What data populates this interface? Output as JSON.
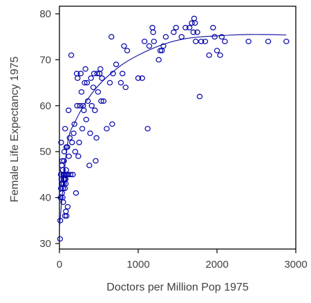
{
  "chart_data": {
    "type": "scatter",
    "title": "",
    "xlabel": "Doctors per Million Pop 1975",
    "ylabel": "Female Life Expectancy 1975",
    "xlim": [
      0,
      3000
    ],
    "ylim": [
      30,
      80
    ],
    "xticks": [
      "0",
      "1000",
      "2000",
      "3000"
    ],
    "yticks": [
      "30",
      "40",
      "50",
      "60",
      "70",
      "80"
    ],
    "grid": false,
    "legend": "none",
    "colors": {
      "points": "#0000aa",
      "fit_line": "#1a1aa6",
      "axes": "#000000"
    },
    "points": [
      {
        "x": 8,
        "y": 31
      },
      {
        "x": 10,
        "y": 35
      },
      {
        "x": 15,
        "y": 40
      },
      {
        "x": 18,
        "y": 45
      },
      {
        "x": 20,
        "y": 42
      },
      {
        "x": 22,
        "y": 52
      },
      {
        "x": 25,
        "y": 44
      },
      {
        "x": 28,
        "y": 43
      },
      {
        "x": 30,
        "y": 47
      },
      {
        "x": 32,
        "y": 41
      },
      {
        "x": 35,
        "y": 48
      },
      {
        "x": 38,
        "y": 43
      },
      {
        "x": 40,
        "y": 40
      },
      {
        "x": 42,
        "y": 46
      },
      {
        "x": 45,
        "y": 42
      },
      {
        "x": 48,
        "y": 39
      },
      {
        "x": 50,
        "y": 45
      },
      {
        "x": 52,
        "y": 44
      },
      {
        "x": 55,
        "y": 43
      },
      {
        "x": 58,
        "y": 48
      },
      {
        "x": 60,
        "y": 45
      },
      {
        "x": 62,
        "y": 50
      },
      {
        "x": 65,
        "y": 44
      },
      {
        "x": 68,
        "y": 42
      },
      {
        "x": 70,
        "y": 36
      },
      {
        "x": 72,
        "y": 55
      },
      {
        "x": 75,
        "y": 45
      },
      {
        "x": 78,
        "y": 44
      },
      {
        "x": 80,
        "y": 43
      },
      {
        "x": 82,
        "y": 37
      },
      {
        "x": 85,
        "y": 46
      },
      {
        "x": 88,
        "y": 51
      },
      {
        "x": 90,
        "y": 36
      },
      {
        "x": 95,
        "y": 45
      },
      {
        "x": 100,
        "y": 51
      },
      {
        "x": 105,
        "y": 38
      },
      {
        "x": 110,
        "y": 45
      },
      {
        "x": 115,
        "y": 59
      },
      {
        "x": 120,
        "y": 49
      },
      {
        "x": 130,
        "y": 53
      },
      {
        "x": 140,
        "y": 45
      },
      {
        "x": 150,
        "y": 71
      },
      {
        "x": 160,
        "y": 52
      },
      {
        "x": 170,
        "y": 45
      },
      {
        "x": 180,
        "y": 54
      },
      {
        "x": 190,
        "y": 56
      },
      {
        "x": 200,
        "y": 50
      },
      {
        "x": 210,
        "y": 41
      },
      {
        "x": 220,
        "y": 67
      },
      {
        "x": 225,
        "y": 60
      },
      {
        "x": 230,
        "y": 66
      },
      {
        "x": 240,
        "y": 49
      },
      {
        "x": 250,
        "y": 52
      },
      {
        "x": 260,
        "y": 60
      },
      {
        "x": 270,
        "y": 67
      },
      {
        "x": 280,
        "y": 63
      },
      {
        "x": 290,
        "y": 55
      },
      {
        "x": 300,
        "y": 60
      },
      {
        "x": 310,
        "y": 59
      },
      {
        "x": 320,
        "y": 65
      },
      {
        "x": 330,
        "y": 68
      },
      {
        "x": 340,
        "y": 57
      },
      {
        "x": 350,
        "y": 65
      },
      {
        "x": 360,
        "y": 61
      },
      {
        "x": 380,
        "y": 47
      },
      {
        "x": 390,
        "y": 54
      },
      {
        "x": 400,
        "y": 66
      },
      {
        "x": 410,
        "y": 60
      },
      {
        "x": 430,
        "y": 64
      },
      {
        "x": 440,
        "y": 67
      },
      {
        "x": 450,
        "y": 59
      },
      {
        "x": 460,
        "y": 48
      },
      {
        "x": 470,
        "y": 53
      },
      {
        "x": 480,
        "y": 67
      },
      {
        "x": 490,
        "y": 63
      },
      {
        "x": 510,
        "y": 67
      },
      {
        "x": 520,
        "y": 68
      },
      {
        "x": 530,
        "y": 61
      },
      {
        "x": 540,
        "y": 66
      },
      {
        "x": 560,
        "y": 61
      },
      {
        "x": 600,
        "y": 55
      },
      {
        "x": 640,
        "y": 65
      },
      {
        "x": 660,
        "y": 75
      },
      {
        "x": 670,
        "y": 56
      },
      {
        "x": 680,
        "y": 67
      },
      {
        "x": 720,
        "y": 69
      },
      {
        "x": 780,
        "y": 65
      },
      {
        "x": 800,
        "y": 67
      },
      {
        "x": 820,
        "y": 73
      },
      {
        "x": 840,
        "y": 64
      },
      {
        "x": 860,
        "y": 72
      },
      {
        "x": 1000,
        "y": 66
      },
      {
        "x": 1050,
        "y": 66
      },
      {
        "x": 1080,
        "y": 74
      },
      {
        "x": 1120,
        "y": 55
      },
      {
        "x": 1140,
        "y": 73
      },
      {
        "x": 1180,
        "y": 77
      },
      {
        "x": 1190,
        "y": 76
      },
      {
        "x": 1200,
        "y": 74
      },
      {
        "x": 1260,
        "y": 70
      },
      {
        "x": 1280,
        "y": 72
      },
      {
        "x": 1300,
        "y": 72
      },
      {
        "x": 1320,
        "y": 73
      },
      {
        "x": 1350,
        "y": 75
      },
      {
        "x": 1450,
        "y": 76
      },
      {
        "x": 1480,
        "y": 77
      },
      {
        "x": 1550,
        "y": 75
      },
      {
        "x": 1600,
        "y": 77
      },
      {
        "x": 1650,
        "y": 77
      },
      {
        "x": 1680,
        "y": 78
      },
      {
        "x": 1700,
        "y": 76
      },
      {
        "x": 1710,
        "y": 79
      },
      {
        "x": 1720,
        "y": 78
      },
      {
        "x": 1730,
        "y": 74
      },
      {
        "x": 1750,
        "y": 76
      },
      {
        "x": 1780,
        "y": 62
      },
      {
        "x": 1800,
        "y": 74
      },
      {
        "x": 1850,
        "y": 74
      },
      {
        "x": 1900,
        "y": 71
      },
      {
        "x": 1950,
        "y": 77
      },
      {
        "x": 1970,
        "y": 75
      },
      {
        "x": 2000,
        "y": 72
      },
      {
        "x": 2040,
        "y": 71
      },
      {
        "x": 2060,
        "y": 75
      },
      {
        "x": 2100,
        "y": 74
      },
      {
        "x": 2400,
        "y": 74
      },
      {
        "x": 2650,
        "y": 74
      },
      {
        "x": 2880,
        "y": 74
      }
    ],
    "fit_line": {
      "type": "smooth",
      "x": [
        0,
        100,
        200,
        300,
        400,
        500,
        600,
        800,
        1000,
        1200,
        1400,
        1600,
        1800,
        2000,
        2200,
        2400,
        2600,
        2880
      ],
      "y": [
        33.5,
        51.5,
        56.5,
        59.8,
        62.4,
        64.5,
        66.2,
        69.0,
        71.0,
        72.6,
        73.8,
        74.6,
        75.0,
        75.2,
        75.4,
        75.5,
        75.5,
        75.4
      ]
    }
  }
}
